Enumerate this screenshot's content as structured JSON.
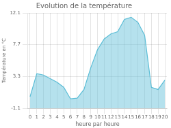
{
  "chart_data": {
    "type": "area",
    "title": "Evolution de la température",
    "xlabel": "heure par heure",
    "ylabel": "Température en °C",
    "x": [
      0,
      1,
      2,
      3,
      4,
      5,
      6,
      7,
      8,
      9,
      10,
      11,
      12,
      13,
      14,
      15,
      16,
      17,
      18,
      19,
      20
    ],
    "values": [
      0.5,
      3.7,
      3.5,
      3.0,
      2.5,
      1.8,
      0.2,
      0.3,
      1.5,
      4.5,
      7.0,
      8.5,
      9.2,
      9.5,
      11.2,
      11.5,
      10.8,
      9.0,
      1.8,
      1.5,
      2.8
    ],
    "color": "#5bbdd6",
    "xlim": [
      -0.3,
      20.3
    ],
    "xticks": [
      0,
      1,
      2,
      3,
      4,
      5,
      6,
      7,
      8,
      9,
      10,
      11,
      12,
      13,
      14,
      15,
      16,
      17,
      18,
      19,
      20
    ],
    "ylim": [
      -1.1,
      12.1
    ],
    "yticks": [
      -1.1,
      3.3,
      7.7,
      12.1
    ],
    "grid": true
  }
}
